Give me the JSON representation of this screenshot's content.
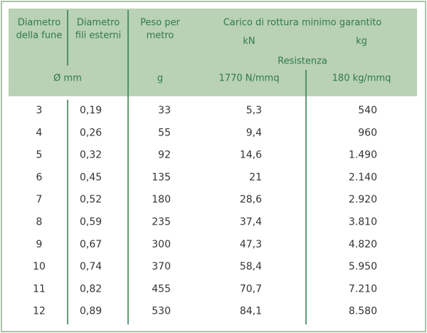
{
  "table": {
    "header": {
      "diameter_rope": [
        "Diametro",
        "della fune"
      ],
      "diameter_wires": [
        "Diametro",
        "fili esterni"
      ],
      "weight": [
        "Peso per",
        "metro"
      ],
      "load": "Carico di rottura minimo garantito",
      "unit_kn": "kN",
      "unit_kg": "kg",
      "resistance": "Resistenza",
      "unit_mm": "Ø mm",
      "unit_g": "g",
      "res_1": "1770 N/mmq",
      "res_2": "180 kg/mmq"
    },
    "rows": [
      [
        "3",
        "0,19",
        "33",
        "5,3",
        "540"
      ],
      [
        "4",
        "0,26",
        "55",
        "9,4",
        "960"
      ],
      [
        "5",
        "0,32",
        "92",
        "14,6",
        "1.490"
      ],
      [
        "6",
        "0,45",
        "135",
        "21",
        "2.140"
      ],
      [
        "7",
        "0,52",
        "180",
        "28,6",
        "2.920"
      ],
      [
        "8",
        "0,59",
        "235",
        "37,4",
        "3.810"
      ],
      [
        "9",
        "0,67",
        "300",
        "47,3",
        "4.820"
      ],
      [
        "10",
        "0,74",
        "370",
        "58,4",
        "5.950"
      ],
      [
        "11",
        "0,82",
        "455",
        "70,7",
        "7.210"
      ],
      [
        "12",
        "0,89",
        "530",
        "84,1",
        "8.580"
      ]
    ]
  }
}
